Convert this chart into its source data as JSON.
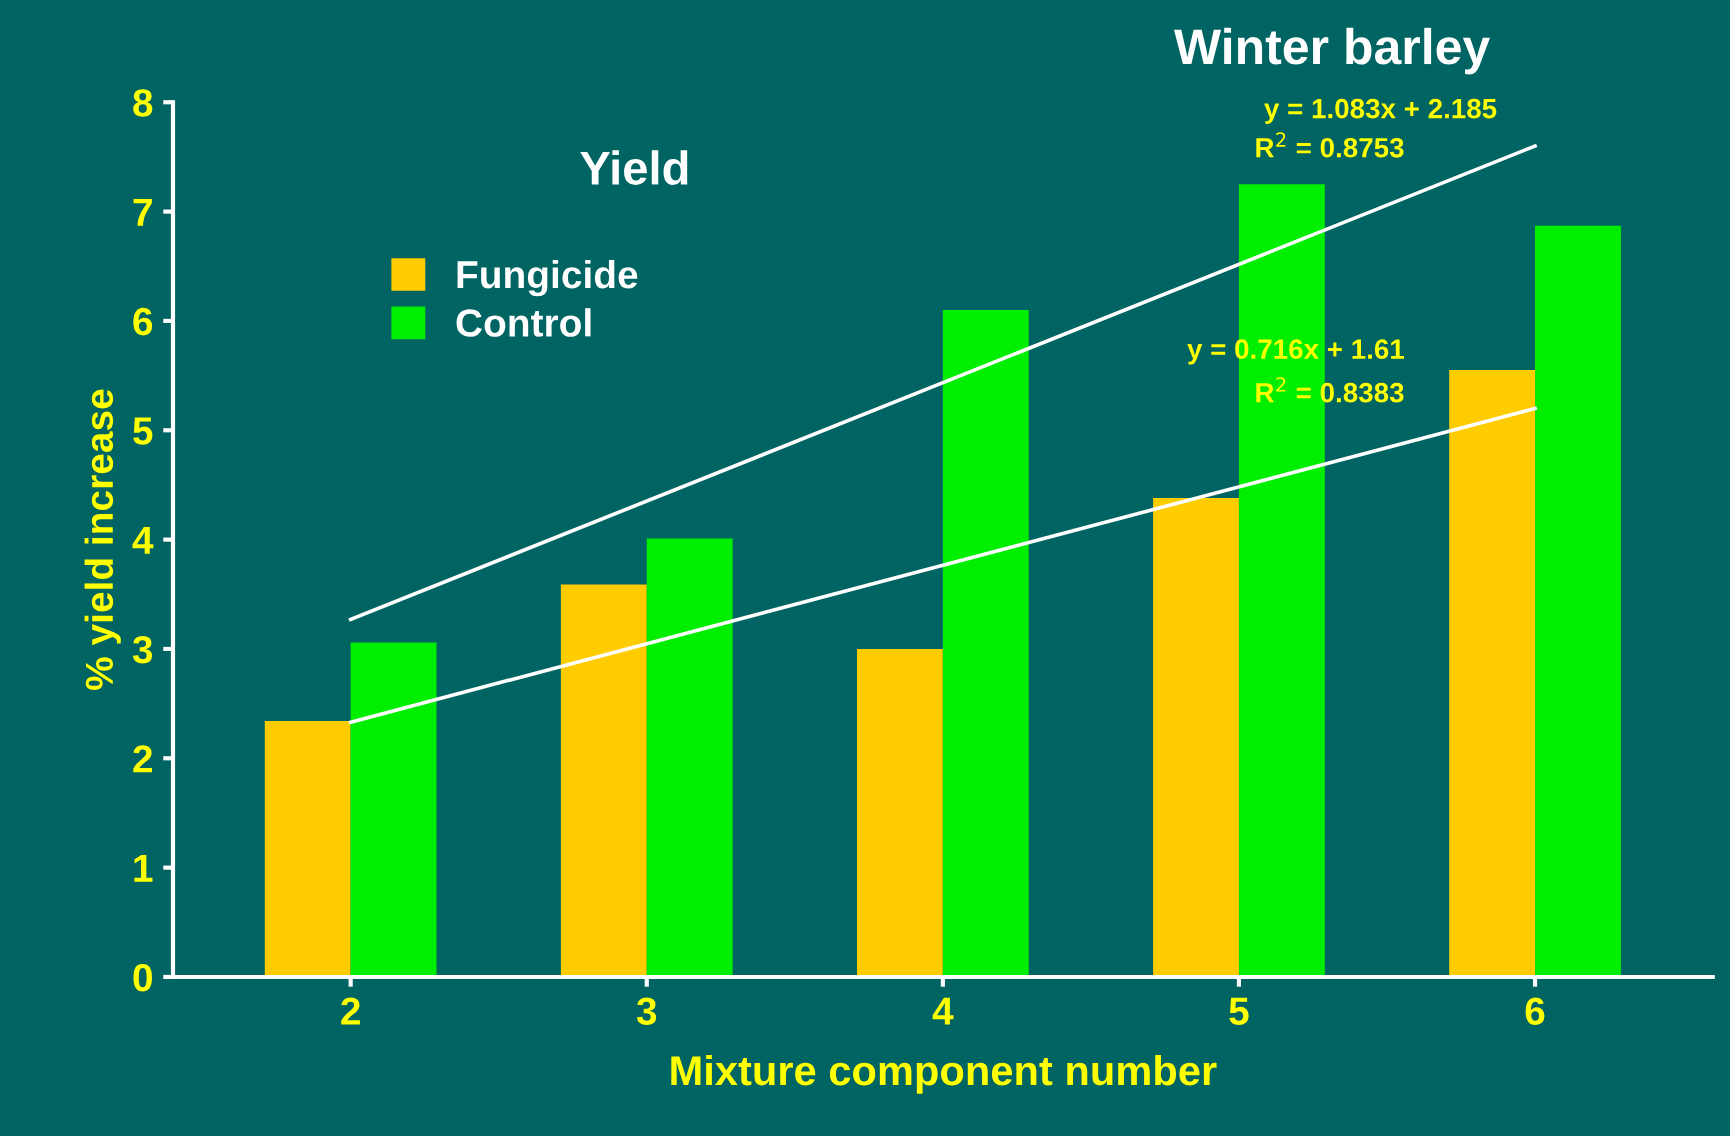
{
  "chart_data": {
    "type": "bar",
    "title": "Winter barley",
    "subtitle": "Yield",
    "xlabel": "Mixture component number",
    "ylabel": "% yield increase",
    "categories": [
      "2",
      "3",
      "4",
      "5",
      "6"
    ],
    "series": [
      {
        "name": "Fungicide",
        "color": "#ffcc00",
        "values": [
          2.34,
          3.59,
          3.0,
          4.38,
          5.55
        ]
      },
      {
        "name": "Control",
        "color": "#00ee00",
        "values": [
          3.06,
          4.01,
          6.1,
          7.25,
          6.87
        ]
      },
      {
        "type": "line",
        "color": "#ffffff",
        "x": [
          "2",
          "6"
        ],
        "values": [
          3.27,
          7.6
        ]
      },
      {
        "type": "line",
        "color": "#ffffff",
        "x": [
          "2",
          "6"
        ],
        "values": [
          2.33,
          5.2
        ]
      }
    ],
    "annotations": [
      "y = 1.083x + 2.185",
      "R$^{2}$ = 0.8753",
      "y = 0.716x + 1.61",
      "R$^{2}$ = 0.8383"
    ],
    "ylim": [
      0,
      8
    ],
    "yticks": [
      0,
      1,
      2,
      3,
      4,
      5,
      6,
      7,
      8
    ],
    "grid": false,
    "legend": "top left"
  }
}
